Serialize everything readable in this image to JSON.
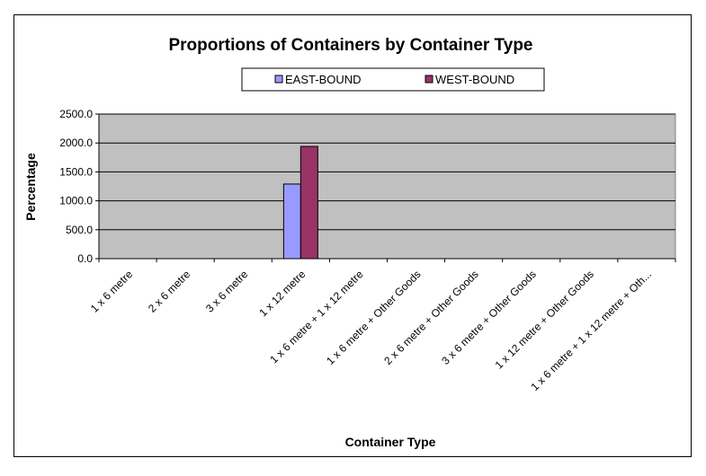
{
  "chart_data": {
    "type": "bar",
    "title": "Proportions of Containers by Container Type",
    "xlabel": "Container Type",
    "ylabel": "Percentage",
    "categories": [
      "1 x 6 metre",
      "2 x 6 metre",
      "3 x 6 metre",
      "1 x 12 metre",
      "1 x 6 metre + 1 x 12 metre",
      "1 x 6 metre + Other Goods",
      "2 x 6 metre + Other Goods",
      "3 x 6 metre + Other Goods",
      "1 x 12 metre + Other Goods",
      "1 x 6 metre + 1 x 12 metre + Oth..."
    ],
    "series": [
      {
        "name": "EAST-BOUND",
        "color": "#9999ff",
        "values": [
          0,
          0,
          0,
          1290,
          0,
          0,
          0,
          0,
          0,
          0
        ]
      },
      {
        "name": "WEST-BOUND",
        "color": "#993366",
        "values": [
          0,
          0,
          0,
          1940,
          0,
          0,
          0,
          0,
          0,
          0
        ]
      }
    ],
    "ylim": [
      0,
      2500
    ],
    "yticks": [
      "0.0",
      "500.0",
      "1000.0",
      "1500.0",
      "2000.0",
      "2500.0"
    ],
    "grid": true,
    "legend_position": "top",
    "plot_background": "#c0c0c0"
  }
}
